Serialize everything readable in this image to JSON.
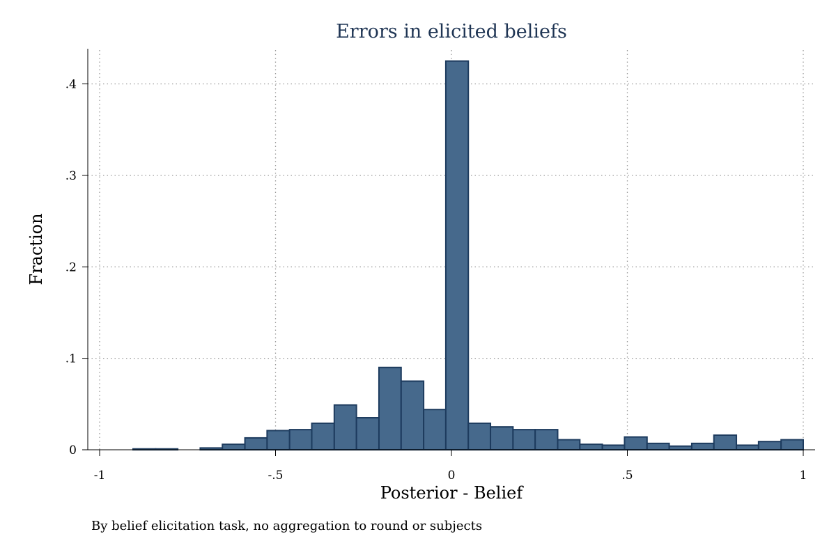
{
  "chart_data": {
    "type": "bar",
    "title": "Errors in elicited beliefs",
    "xlabel": "Posterior - Belief",
    "ylabel": "Fraction",
    "note": "By belief elicitation task, no aggregation to round or subjects",
    "xlim": [
      -1,
      1
    ],
    "ylim": [
      0,
      0.4
    ],
    "x_ticks": [
      -1,
      -0.5,
      0,
      0.5,
      1
    ],
    "x_tick_labels": [
      "-1",
      "-.5",
      "0",
      ".5",
      "1"
    ],
    "y_ticks": [
      0,
      0.1,
      0.2,
      0.3,
      0.4
    ],
    "y_tick_labels": [
      "0",
      ".1",
      ".2",
      ".3",
      ".4"
    ],
    "grid": true,
    "bar_color": "#46698c",
    "bar_edge_color": "#1d3b5e",
    "bin_width": 0.0635,
    "bins": [
      {
        "x0": -0.905,
        "x1": -0.841,
        "value": 0.001
      },
      {
        "x0": -0.841,
        "x1": -0.778,
        "value": 0.001
      },
      {
        "x0": -0.714,
        "x1": -0.651,
        "value": 0.002
      },
      {
        "x0": -0.651,
        "x1": -0.587,
        "value": 0.006
      },
      {
        "x0": -0.587,
        "x1": -0.524,
        "value": 0.013
      },
      {
        "x0": -0.524,
        "x1": -0.46,
        "value": 0.021
      },
      {
        "x0": -0.46,
        "x1": -0.397,
        "value": 0.022
      },
      {
        "x0": -0.397,
        "x1": -0.333,
        "value": 0.029
      },
      {
        "x0": -0.333,
        "x1": -0.27,
        "value": 0.049
      },
      {
        "x0": -0.27,
        "x1": -0.206,
        "value": 0.035
      },
      {
        "x0": -0.206,
        "x1": -0.143,
        "value": 0.09
      },
      {
        "x0": -0.143,
        "x1": -0.079,
        "value": 0.075
      },
      {
        "x0": -0.079,
        "x1": -0.016,
        "value": 0.044
      },
      {
        "x0": -0.016,
        "x1": 0.048,
        "value": 0.425
      },
      {
        "x0": 0.048,
        "x1": 0.111,
        "value": 0.029
      },
      {
        "x0": 0.111,
        "x1": 0.175,
        "value": 0.025
      },
      {
        "x0": 0.175,
        "x1": 0.238,
        "value": 0.022
      },
      {
        "x0": 0.238,
        "x1": 0.302,
        "value": 0.022
      },
      {
        "x0": 0.302,
        "x1": 0.365,
        "value": 0.011
      },
      {
        "x0": 0.365,
        "x1": 0.429,
        "value": 0.006
      },
      {
        "x0": 0.429,
        "x1": 0.492,
        "value": 0.005
      },
      {
        "x0": 0.492,
        "x1": 0.556,
        "value": 0.014
      },
      {
        "x0": 0.556,
        "x1": 0.619,
        "value": 0.007
      },
      {
        "x0": 0.619,
        "x1": 0.683,
        "value": 0.004
      },
      {
        "x0": 0.683,
        "x1": 0.746,
        "value": 0.007
      },
      {
        "x0": 0.746,
        "x1": 0.81,
        "value": 0.016
      },
      {
        "x0": 0.81,
        "x1": 0.873,
        "value": 0.005
      },
      {
        "x0": 0.873,
        "x1": 0.937,
        "value": 0.009
      },
      {
        "x0": 0.937,
        "x1": 1.0,
        "value": 0.011
      }
    ]
  }
}
